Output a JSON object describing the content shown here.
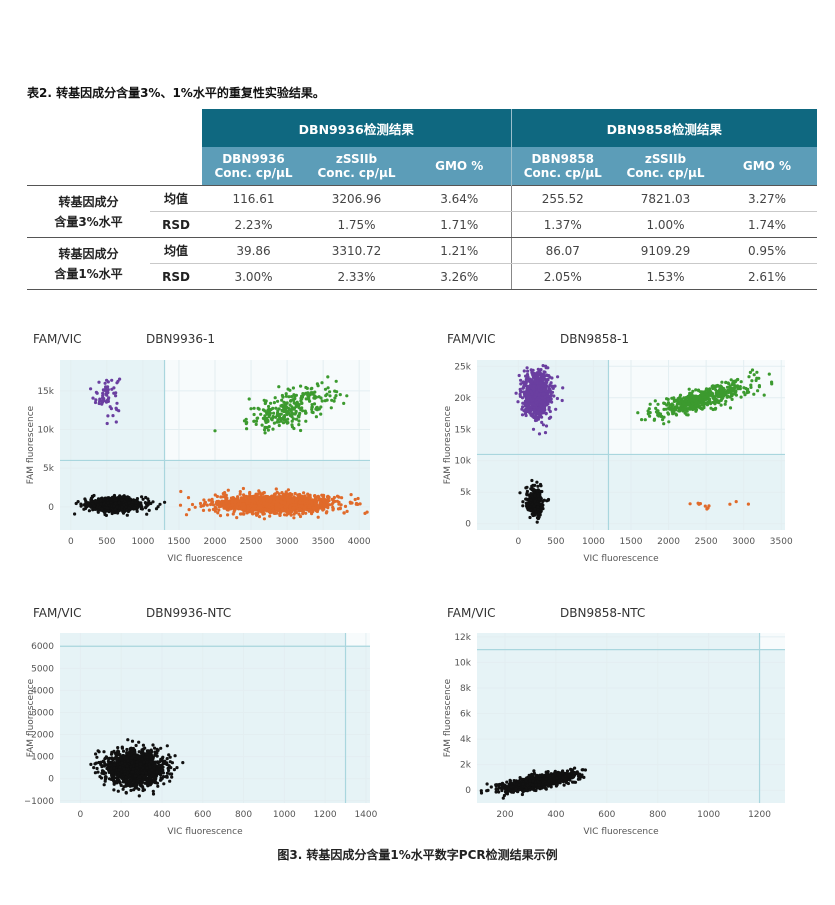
{
  "table": {
    "caption": "表2. 转基因成分含量3%、1%水平的重复性实验结果。",
    "group1": "DBN9936检测结果",
    "group2": "DBN9858检测结果",
    "col_headers": [
      [
        "DBN9936",
        "Conc. cp/μL"
      ],
      [
        "zSSIIb",
        "Conc. cp/μL"
      ],
      [
        "GMO %"
      ],
      [
        "DBN9858",
        "Conc. cp/μL"
      ],
      [
        "zSSIIb",
        "Conc. cp/μL"
      ],
      [
        "GMO %"
      ]
    ],
    "blocks": [
      {
        "label_line1": "转基因成分",
        "label_line2": "含量3%水平",
        "rows": [
          {
            "stat": "均值",
            "values": [
              "116.61",
              "3206.96",
              "3.64%",
              "255.52",
              "7821.03",
              "3.27%"
            ]
          },
          {
            "stat": "RSD",
            "values": [
              "2.23%",
              "1.75%",
              "1.71%",
              "1.37%",
              "1.00%",
              "1.74%"
            ]
          }
        ]
      },
      {
        "label_line1": "转基因成分",
        "label_line2": "含量1%水平",
        "rows": [
          {
            "stat": "均值",
            "values": [
              "39.86",
              "3310.72",
              "1.21%",
              "86.07",
              "9109.29",
              "0.95%"
            ]
          },
          {
            "stat": "RSD",
            "values": [
              "3.00%",
              "2.33%",
              "3.26%",
              "2.05%",
              "1.53%",
              "2.61%"
            ]
          }
        ]
      }
    ]
  },
  "figure_caption": "图3. 转基因成分含量1%水平数字PCR检测结果示例",
  "colors": {
    "header_dark": "#0f6880",
    "header_light": "#5c9db8",
    "cluster_purple": "#6a3fa0",
    "cluster_green": "#3c9a2f",
    "cluster_orange": "#e06a2a",
    "cluster_black": "#111111",
    "quadrant_fill": "#e6f3f6",
    "threshold": "#a9d6de"
  },
  "chart_data": [
    {
      "type": "scatter",
      "label_left": "FAM/VIC",
      "title": "DBN9936-1",
      "xlabel": "VIC fluorescence",
      "ylabel": "FAM fluorescence",
      "xlim": [
        -150,
        4150
      ],
      "ylim": [
        -3000,
        19000
      ],
      "xticks": [
        0,
        500,
        1000,
        1500,
        2000,
        2500,
        3000,
        3500,
        4000
      ],
      "xtick_labels": [
        "0",
        "500",
        "1000",
        "1500",
        "2000",
        "2500",
        "3000",
        "3500",
        "4000"
      ],
      "yticks": [
        0,
        5000,
        10000,
        15000
      ],
      "ytick_labels": [
        "0",
        "5k",
        "10k",
        "15k"
      ],
      "threshold_x": 1300,
      "threshold_y": 6000,
      "clusters": [
        {
          "name": "FAM+",
          "color": "#6a3fa0",
          "cx": 500,
          "cy": 14500,
          "sx": 90,
          "sy": 1300,
          "n": 60
        },
        {
          "name": "FAM+VIC+",
          "color": "#3c9a2f",
          "cx": 3050,
          "cy": 12800,
          "sx": 300,
          "sy": 1100,
          "n": 260,
          "slope": 3.2
        },
        {
          "name": "VIC+",
          "color": "#e06a2a",
          "cx": 2850,
          "cy": 400,
          "sx": 420,
          "sy": 600,
          "n": 1400
        },
        {
          "name": "Negative",
          "color": "#111111",
          "cx": 620,
          "cy": 300,
          "sx": 180,
          "sy": 400,
          "n": 1200
        }
      ]
    },
    {
      "type": "scatter",
      "label_left": "FAM/VIC",
      "title": "DBN9858-1",
      "xlabel": "VIC fluorescence",
      "ylabel": "FAM fluorescence",
      "xlim": [
        -550,
        3550
      ],
      "ylim": [
        -1000,
        26000
      ],
      "xticks": [
        0,
        500,
        1000,
        1500,
        2000,
        2500,
        3000,
        3500
      ],
      "xtick_labels": [
        "0",
        "500",
        "1000",
        "1500",
        "2000",
        "2500",
        "3000",
        "3500"
      ],
      "yticks": [
        0,
        5000,
        10000,
        15000,
        20000,
        25000
      ],
      "ytick_labels": [
        "0",
        "5k",
        "10k",
        "15k",
        "20k",
        "25k"
      ],
      "threshold_x": 1200,
      "threshold_y": 11000,
      "clusters": [
        {
          "name": "FAM+",
          "color": "#6a3fa0",
          "cx": 250,
          "cy": 20500,
          "sx": 90,
          "sy": 1700,
          "n": 900
        },
        {
          "name": "FAM+VIC+",
          "color": "#3c9a2f",
          "cx": 2450,
          "cy": 19800,
          "sx": 330,
          "sy": 900,
          "n": 500,
          "slope": 3.4
        },
        {
          "name": "VIC+",
          "color": "#e06a2a",
          "cx": 2650,
          "cy": 3000,
          "sx": 320,
          "sy": 300,
          "n": 11
        },
        {
          "name": "Negative",
          "color": "#111111",
          "cx": 220,
          "cy": 3500,
          "sx": 60,
          "sy": 1200,
          "n": 300
        }
      ]
    },
    {
      "type": "scatter",
      "label_left": "FAM/VIC",
      "title": "DBN9936-NTC",
      "xlabel": "VIC fluorescence",
      "ylabel": "FAM fluorescence",
      "xlim": [
        -100,
        1420
      ],
      "ylim": [
        -1100,
        6600
      ],
      "xticks": [
        0,
        200,
        400,
        600,
        800,
        1000,
        1200,
        1400
      ],
      "xtick_labels": [
        "0",
        "200",
        "400",
        "600",
        "800",
        "1000",
        "1200",
        "1400"
      ],
      "yticks": [
        -1000,
        0,
        1000,
        2000,
        3000,
        4000,
        5000,
        6000
      ],
      "ytick_labels": [
        "−1000",
        "0",
        "1000",
        "2000",
        "3000",
        "4000",
        "5000",
        "6000"
      ],
      "threshold_x": 1300,
      "threshold_y": 6000,
      "clusters": [
        {
          "name": "Negative",
          "color": "#111111",
          "cx": 270,
          "cy": 450,
          "sx": 70,
          "sy": 380,
          "n": 1500
        }
      ]
    },
    {
      "type": "scatter",
      "label_left": "FAM/VIC",
      "title": "DBN9858-NTC",
      "xlabel": "VIC fluorescence",
      "ylabel": "FAM fluorescence",
      "xlim": [
        90,
        1300
      ],
      "ylim": [
        -1000,
        12300
      ],
      "xticks": [
        200,
        400,
        600,
        800,
        1000,
        1200
      ],
      "xtick_labels": [
        "200",
        "400",
        "600",
        "800",
        "1000",
        "1200"
      ],
      "yticks": [
        0,
        2000,
        4000,
        6000,
        8000,
        10000,
        12000
      ],
      "ytick_labels": [
        "0",
        "2k",
        "4k",
        "6k",
        "8k",
        "10k",
        "12k"
      ],
      "threshold_x": 1200,
      "threshold_y": 11000,
      "clusters": [
        {
          "name": "Negative",
          "color": "#111111",
          "cx": 330,
          "cy": 650,
          "sx": 70,
          "sy": 250,
          "n": 1200,
          "slope": 3.5
        }
      ]
    }
  ]
}
